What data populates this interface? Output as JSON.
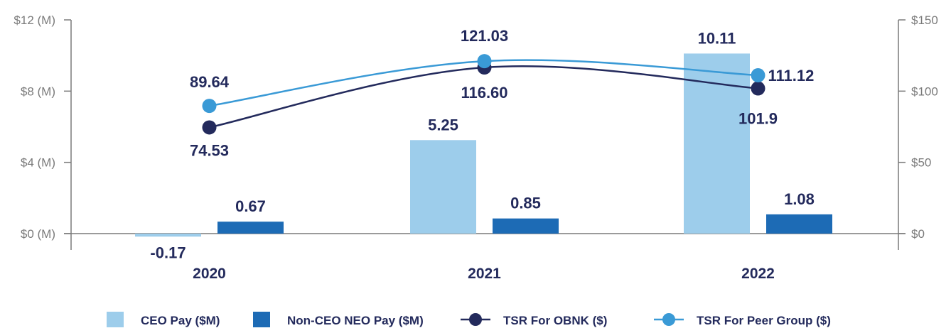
{
  "chart_data": {
    "type": "bar",
    "categories": [
      "2020",
      "2021",
      "2022"
    ],
    "left_axis": {
      "ticks": [
        "$0 (M)",
        "$4 (M)",
        "$8 (M)",
        "$12 (M)"
      ],
      "tick_values": [
        0,
        4,
        8,
        12
      ],
      "ylim": [
        0,
        12
      ]
    },
    "right_axis": {
      "ticks": [
        "$0",
        "$50",
        "$100",
        "$150"
      ],
      "tick_values": [
        0,
        50,
        100,
        150
      ],
      "ylim": [
        0,
        150
      ]
    },
    "grid": false,
    "legend_position": "bottom",
    "series": [
      {
        "name": "CEO Pay ($M)",
        "kind": "bar",
        "axis": "left",
        "color": "#9dcdeb",
        "values": [
          -0.17,
          5.25,
          10.11
        ],
        "labels": [
          "-0.17",
          "5.25",
          "10.11"
        ]
      },
      {
        "name": "Non-CEO NEO Pay ($M)",
        "kind": "bar",
        "axis": "left",
        "color": "#1d6bb5",
        "values": [
          0.67,
          0.85,
          1.08
        ],
        "labels": [
          "0.67",
          "0.85",
          "1.08"
        ]
      },
      {
        "name": "TSR For OBNK ($)",
        "kind": "line",
        "axis": "right",
        "color": "#232a5c",
        "values": [
          74.53,
          116.6,
          101.9
        ],
        "labels": [
          "74.53",
          "116.60",
          "101.9"
        ]
      },
      {
        "name": "TSR For Peer Group ($)",
        "kind": "line",
        "axis": "right",
        "color": "#3a9ad6",
        "values": [
          89.64,
          121.03,
          111.12
        ],
        "labels": [
          "89.64",
          "121.03",
          "111.12"
        ]
      }
    ]
  }
}
